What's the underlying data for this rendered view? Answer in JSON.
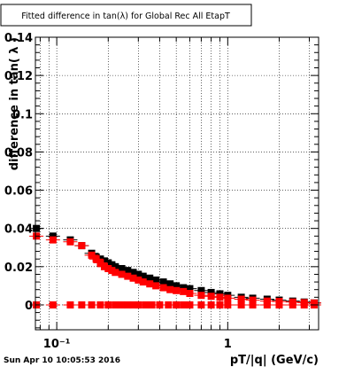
{
  "chart_data": {
    "type": "scatter",
    "title": "Fitted difference in tan(λ) for Global Rec All EtapT",
    "xlabel": "pT/|q| (GeV/c)",
    "ylabel": "difference in tan( λ )",
    "x_scale": "log",
    "xlim": [
      0.075,
      3.4
    ],
    "ylim": [
      -0.013,
      0.14
    ],
    "grid": true,
    "y_ticks": [
      {
        "v": 0,
        "label": "0"
      },
      {
        "v": 0.02,
        "label": "0.02"
      },
      {
        "v": 0.04,
        "label": "0.04"
      },
      {
        "v": 0.06,
        "label": "0.06"
      },
      {
        "v": 0.08,
        "label": "0.08"
      },
      {
        "v": 0.1,
        "label": "0.1"
      },
      {
        "v": 0.12,
        "label": "0.12"
      },
      {
        "v": 0.14,
        "label": "0.14"
      }
    ],
    "x_ticks": [
      {
        "v": 0.1,
        "label": "10⁻¹"
      },
      {
        "v": 1,
        "label": "1"
      }
    ],
    "series": [
      {
        "color": "#000000",
        "x": [
          0.076,
          0.095,
          0.12,
          0.14,
          0.16,
          0.17,
          0.18,
          0.19,
          0.2,
          0.21,
          0.22,
          0.24,
          0.26,
          0.28,
          0.3,
          0.32,
          0.35,
          0.38,
          0.42,
          0.46,
          0.5,
          0.55,
          0.6,
          0.7,
          0.8,
          0.9,
          1.0,
          1.2,
          1.4,
          1.7,
          2.0,
          2.4,
          2.8,
          3.2
        ],
        "y": [
          0.04,
          0.036,
          0.034,
          0.031,
          0.027,
          0.025,
          0.024,
          0.023,
          0.022,
          0.021,
          0.02,
          0.019,
          0.018,
          0.017,
          0.016,
          0.015,
          0.014,
          0.013,
          0.012,
          0.011,
          0.01,
          0.009,
          0.0085,
          0.0075,
          0.0065,
          0.0058,
          0.005,
          0.004,
          0.0035,
          0.003,
          0.0025,
          0.002,
          0.0015,
          0.001
        ]
      },
      {
        "color": "#ff0000",
        "x": [
          0.076,
          0.095,
          0.12,
          0.14,
          0.16,
          0.17,
          0.18,
          0.19,
          0.2,
          0.21,
          0.22,
          0.24,
          0.26,
          0.28,
          0.3,
          0.32,
          0.35,
          0.38,
          0.42,
          0.46,
          0.5,
          0.55,
          0.6,
          0.7,
          0.8,
          0.9,
          1.0,
          1.2,
          1.4,
          1.7,
          2.0,
          2.4,
          2.8,
          3.2
        ],
        "y": [
          0.036,
          0.034,
          0.033,
          0.031,
          0.026,
          0.024,
          0.022,
          0.02,
          0.019,
          0.018,
          0.017,
          0.016,
          0.015,
          0.014,
          0.013,
          0.012,
          0.011,
          0.01,
          0.009,
          0.008,
          0.0075,
          0.007,
          0.006,
          0.005,
          0.0045,
          0.004,
          0.0035,
          0.003,
          0.0025,
          0.002,
          0.0018,
          0.0015,
          0.0012,
          0.001
        ]
      },
      {
        "color": "#ff0000",
        "x": [
          0.076,
          0.095,
          0.12,
          0.14,
          0.16,
          0.18,
          0.2,
          0.22,
          0.24,
          0.26,
          0.28,
          0.3,
          0.33,
          0.36,
          0.4,
          0.45,
          0.5,
          0.55,
          0.6,
          0.7,
          0.8,
          0.9,
          1.0,
          1.2,
          1.4,
          1.7,
          2.0,
          2.4,
          2.8,
          3.2
        ],
        "y": [
          0.0,
          0.0,
          0.0,
          0.0,
          0.0,
          0.0,
          0.0,
          0.0,
          0.0,
          0.0,
          0.0,
          0.0,
          0.0,
          0.0,
          0.0,
          0.0,
          0.0,
          0.0,
          0.0,
          0.0,
          0.0,
          0.0,
          0.0,
          0.0,
          0.0,
          0.0,
          0.0,
          0.0,
          0.0,
          0.0
        ]
      }
    ]
  },
  "footer": {
    "timestamp": "Sun Apr 10 10:05:53 2016"
  }
}
